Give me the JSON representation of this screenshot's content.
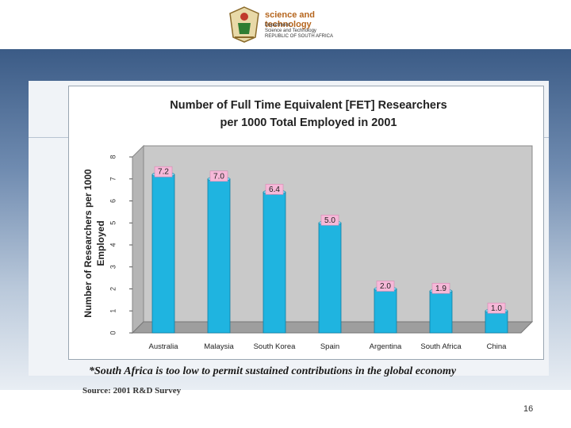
{
  "header": {
    "logo_title": "science and technology",
    "logo_subtitle_1": "Department:",
    "logo_subtitle_2": "Science and Technology",
    "logo_subtitle_3": "REPUBLIC OF SOUTH AFRICA"
  },
  "chart_data": {
    "type": "bar",
    "title_line1": "Number of Full Time Equivalent [FET] Researchers",
    "title_line2": "per 1000 Total Employed in 2001",
    "ylabel_line1": "Number of Researchers per 1000",
    "ylabel_line2": "Employed",
    "xlabel": "",
    "categories": [
      "Australia",
      "Malaysia",
      "South Korea",
      "Spain",
      "Argentina",
      "South Africa",
      "China"
    ],
    "values": [
      7.2,
      7.0,
      6.4,
      5.0,
      2.0,
      1.9,
      1.0
    ],
    "data_labels": [
      "7.2",
      "7.0",
      "6.4",
      "5.0",
      "2.0",
      "1.9",
      "1.0"
    ],
    "ylim": [
      0,
      8
    ],
    "yticks": [
      "0",
      "1",
      "2",
      "3",
      "4",
      "5",
      "6",
      "7",
      "8"
    ],
    "bar_color": "#1fb4e0",
    "label_bg_color": "#f6b8d8",
    "grid": false
  },
  "footnote": "*South Africa is too low to permit sustained contributions in the global economy",
  "source": "Source: 2001 R&D Survey",
  "page_number": "16"
}
